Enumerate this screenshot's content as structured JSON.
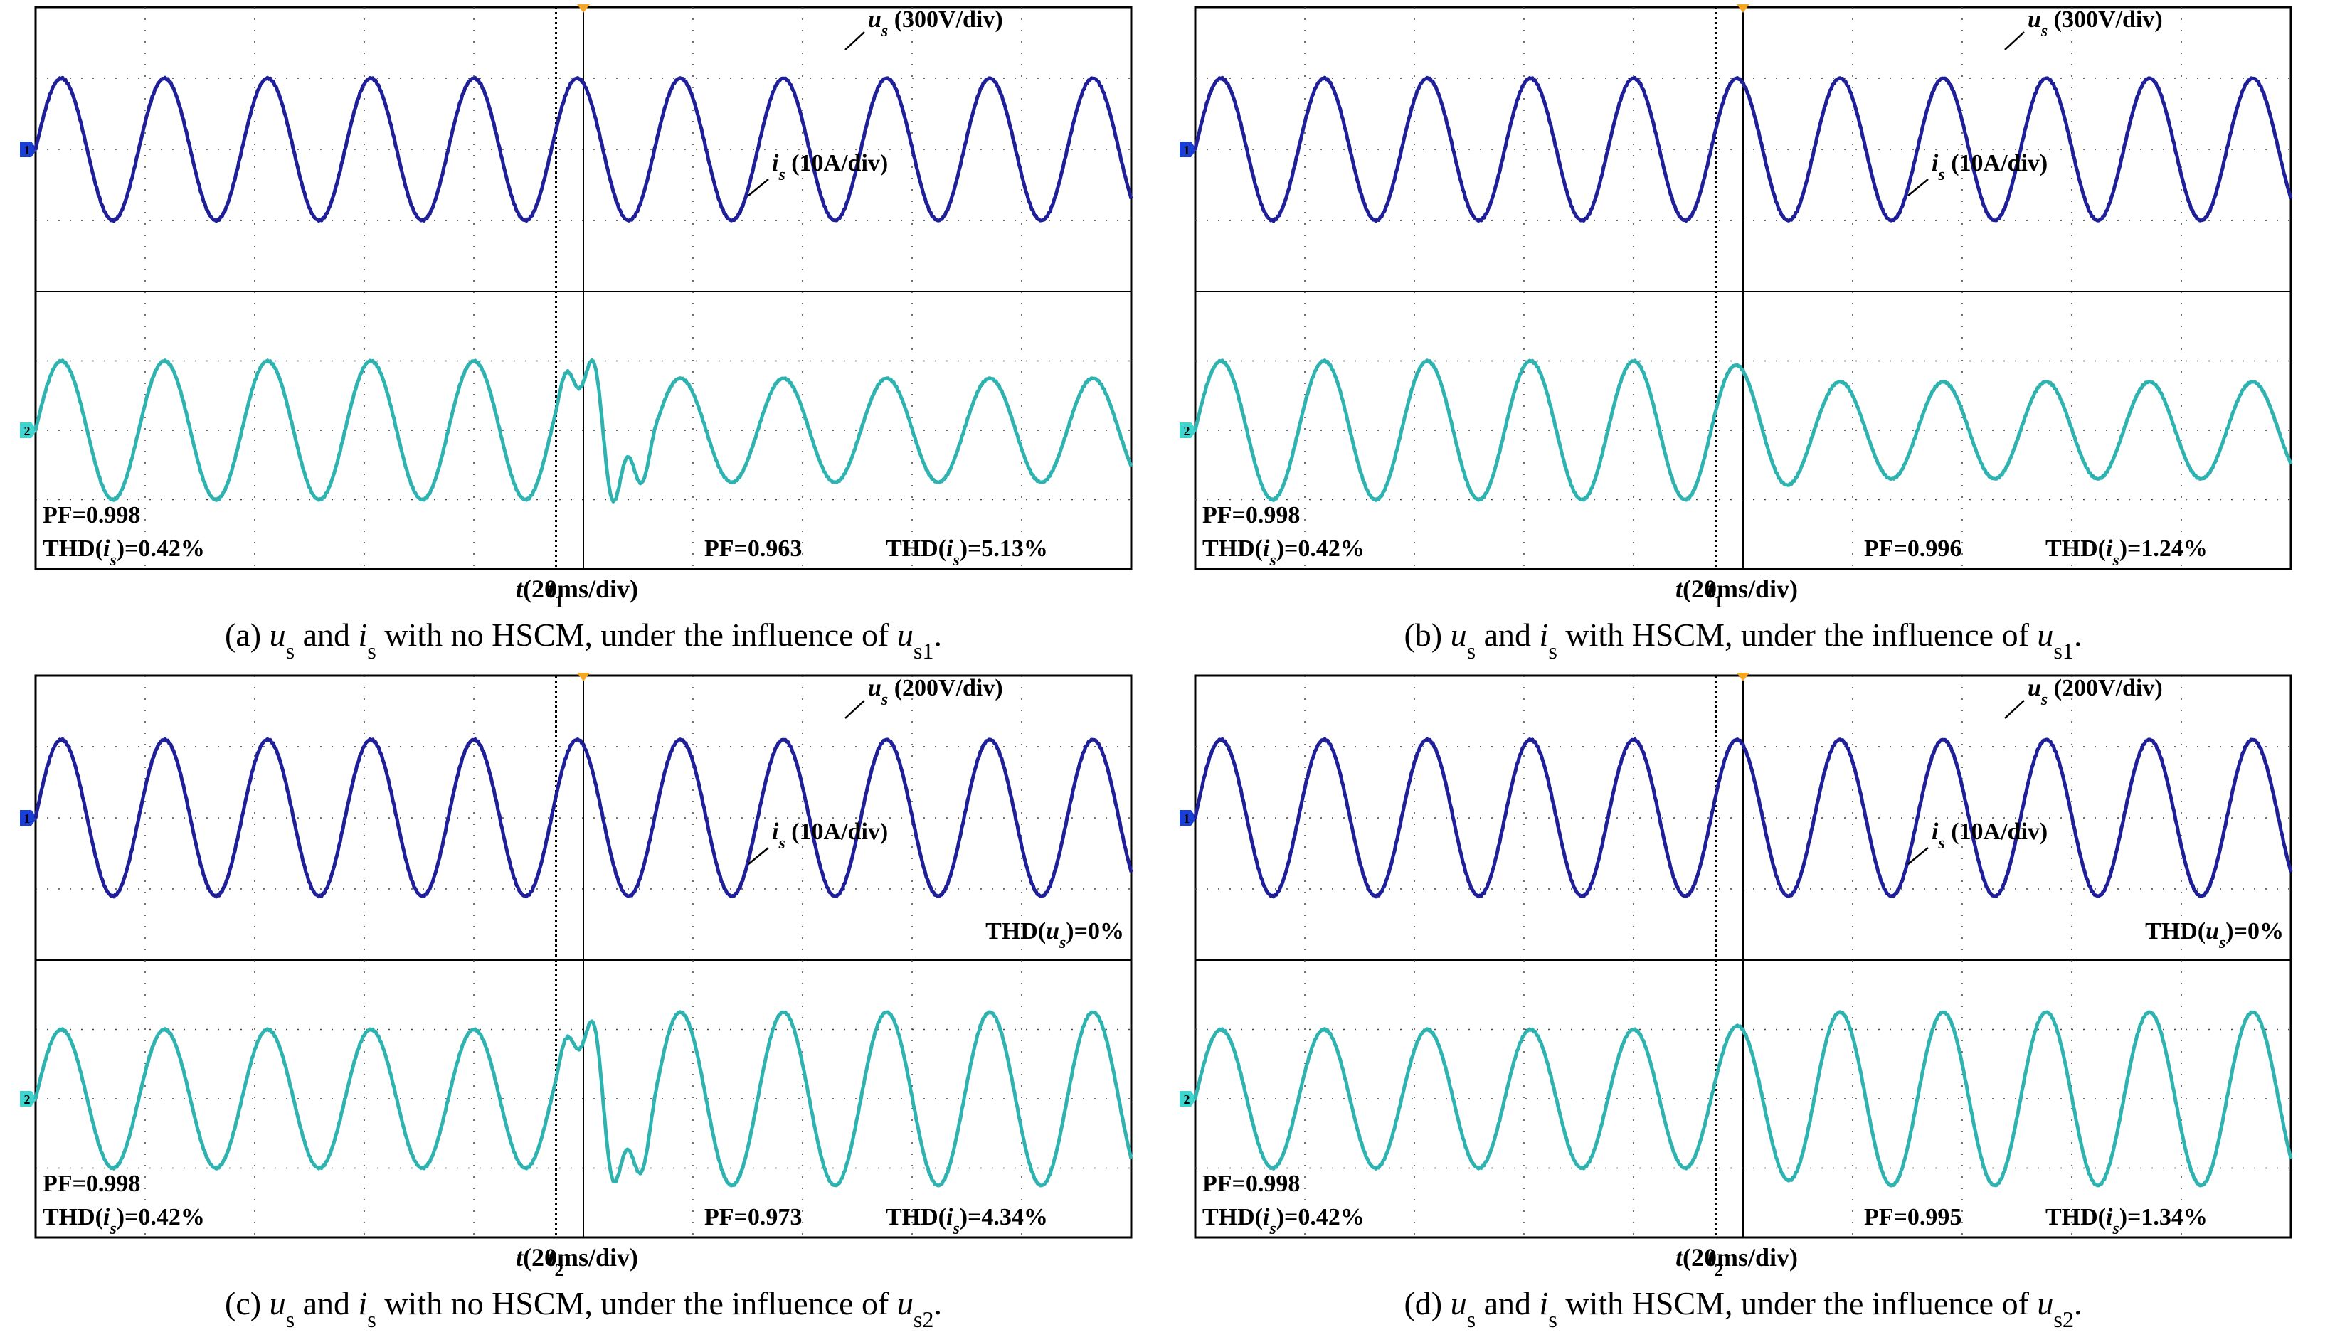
{
  "figure": {
    "colors": {
      "voltage_trace": "#1f1f9a",
      "current_trace": "#2fb3b0",
      "grid": "#444444",
      "marker_orange": "#f5a623",
      "ch1_marker": "#1a3fd6",
      "ch2_marker": "#3fd6cf"
    },
    "channel_markers": {
      "ch1": "1",
      "ch2": "2"
    }
  },
  "panels": [
    {
      "id": "a",
      "caption": {
        "prefix": "(a) ",
        "u": "u",
        "u_sub": "s",
        "and": " and ",
        "i": "i",
        "i_sub": "s",
        "rest": " with no HSCM, under the influence of ",
        "u2": "u",
        "u2_sub": "s1",
        "end": "."
      },
      "voltage_label": {
        "var": "u",
        "sub": "s",
        "scale": " (300V/div)"
      },
      "current_label": {
        "var": "i",
        "sub": "s",
        "scale": " (10A/div)"
      },
      "left_pf": "PF=0.998",
      "left_thd": {
        "pre": "THD(",
        "var": "i",
        "sub": "s",
        "post": ")=0.42%"
      },
      "right_pf": "PF=0.963",
      "right_thd": {
        "pre": "THD(",
        "var": "i",
        "sub": "s",
        "post": ")=5.13%"
      },
      "event_marker": {
        "var": "t",
        "sub": "1"
      },
      "time_label": {
        "var": "t",
        "rest": "(20ms/div)"
      },
      "thd_u": null
    },
    {
      "id": "b",
      "caption": {
        "prefix": "(b) ",
        "u": "u",
        "u_sub": "s",
        "and": " and ",
        "i": "i",
        "i_sub": "s",
        "rest": " with HSCM, under the influence of ",
        "u2": "u",
        "u2_sub": "s1",
        "end": "."
      },
      "voltage_label": {
        "var": "u",
        "sub": "s",
        "scale": " (300V/div)"
      },
      "current_label": {
        "var": "i",
        "sub": "s",
        "scale": " (10A/div)"
      },
      "left_pf": "PF=0.998",
      "left_thd": {
        "pre": "THD(",
        "var": "i",
        "sub": "s",
        "post": ")=0.42%"
      },
      "right_pf": "PF=0.996",
      "right_thd": {
        "pre": "THD(",
        "var": "i",
        "sub": "s",
        "post": ")=1.24%"
      },
      "event_marker": {
        "var": "t",
        "sub": "1"
      },
      "time_label": {
        "var": "t",
        "rest": "(20ms/div)"
      },
      "thd_u": null
    },
    {
      "id": "c",
      "caption": {
        "prefix": "(c) ",
        "u": "u",
        "u_sub": "s",
        "and": " and ",
        "i": "i",
        "i_sub": "s",
        "rest": " with no HSCM, under the influence of ",
        "u2": "u",
        "u2_sub": "s2",
        "end": "."
      },
      "voltage_label": {
        "var": "u",
        "sub": "s",
        "scale": " (200V/div)"
      },
      "current_label": {
        "var": "i",
        "sub": "s",
        "scale": " (10A/div)"
      },
      "left_pf": "PF=0.998",
      "left_thd": {
        "pre": "THD(",
        "var": "i",
        "sub": "s",
        "post": ")=0.42%"
      },
      "right_pf": "PF=0.973",
      "right_thd": {
        "pre": "THD(",
        "var": "i",
        "sub": "s",
        "post": ")=4.34%"
      },
      "event_marker": {
        "var": "t",
        "sub": "2"
      },
      "time_label": {
        "var": "t",
        "rest": "(20ms/div)"
      },
      "thd_u": {
        "pre": "THD(",
        "var": "u",
        "sub": "s",
        "post": ")=0%"
      }
    },
    {
      "id": "d",
      "caption": {
        "prefix": "(d) ",
        "u": "u",
        "u_sub": "s",
        "and": " and ",
        "i": "i",
        "i_sub": "s",
        "rest": " with HSCM, under the influence of ",
        "u2": "u",
        "u2_sub": "s2",
        "end": "."
      },
      "voltage_label": {
        "var": "u",
        "sub": "s",
        "scale": " (200V/div)"
      },
      "current_label": {
        "var": "i",
        "sub": "s",
        "scale": " (10A/div)"
      },
      "left_pf": "PF=0.998",
      "left_thd": {
        "pre": "THD(",
        "var": "i",
        "sub": "s",
        "post": ")=0.42%"
      },
      "right_pf": "PF=0.995",
      "right_thd": {
        "pre": "THD(",
        "var": "i",
        "sub": "s",
        "post": ")=1.34%"
      },
      "event_marker": {
        "var": "t",
        "sub": "2"
      },
      "time_label": {
        "var": "t",
        "rest": "(20ms/div)"
      },
      "thd_u": {
        "pre": "THD(",
        "var": "u",
        "sub": "s",
        "post": ")=0%"
      }
    }
  ],
  "chart_data": [
    {
      "type": "line",
      "panel": "a",
      "title": "",
      "x_unit": "ms",
      "x_per_div": 20,
      "event_time": {
        "var": "t",
        "sub": "1"
      },
      "series": [
        {
          "name": "us",
          "scale": "300V/div",
          "frequency_hz": 50,
          "amplitude_div": 1.0,
          "behavior": "steady sinusoid throughout"
        },
        {
          "name": "is",
          "scale": "10A/div",
          "frequency_hz": 50,
          "amplitude_div_before": 1.0,
          "amplitude_div_after": 0.75,
          "behavior": "distorted transient with spikes after event, then sinusoid",
          "PF_before": 0.998,
          "THD_before_pct": 0.42,
          "PF_after": 0.963,
          "THD_after_pct": 5.13
        }
      ]
    },
    {
      "type": "line",
      "panel": "b",
      "title": "",
      "x_unit": "ms",
      "x_per_div": 20,
      "event_time": {
        "var": "t",
        "sub": "1"
      },
      "series": [
        {
          "name": "us",
          "scale": "300V/div",
          "frequency_hz": 50,
          "amplitude_div": 1.0,
          "behavior": "steady sinusoid throughout"
        },
        {
          "name": "is",
          "scale": "10A/div",
          "frequency_hz": 50,
          "amplitude_div_before": 1.0,
          "amplitude_div_after": 0.7,
          "behavior": "smooth transition, reduced amplitude",
          "PF_before": 0.998,
          "THD_before_pct": 0.42,
          "PF_after": 0.996,
          "THD_after_pct": 1.24
        }
      ]
    },
    {
      "type": "line",
      "panel": "c",
      "title": "",
      "x_unit": "ms",
      "x_per_div": 20,
      "event_time": {
        "var": "t",
        "sub": "2"
      },
      "series": [
        {
          "name": "us",
          "scale": "200V/div",
          "frequency_hz": 50,
          "amplitude_div": 1.1,
          "behavior": "steady sinusoid throughout",
          "THD_pct": 0
        },
        {
          "name": "is",
          "scale": "10A/div",
          "frequency_hz": 50,
          "amplitude_div_before": 1.0,
          "amplitude_div_after": 1.25,
          "behavior": "large distorted transient after event, then larger sinusoid",
          "PF_before": 0.998,
          "THD_before_pct": 0.42,
          "PF_after": 0.973,
          "THD_after_pct": 4.34
        }
      ]
    },
    {
      "type": "line",
      "panel": "d",
      "title": "",
      "x_unit": "ms",
      "x_per_div": 20,
      "event_time": {
        "var": "t",
        "sub": "2"
      },
      "series": [
        {
          "name": "us",
          "scale": "200V/div",
          "frequency_hz": 50,
          "amplitude_div": 1.1,
          "behavior": "steady sinusoid throughout",
          "THD_pct": 0
        },
        {
          "name": "is",
          "scale": "10A/div",
          "frequency_hz": 50,
          "amplitude_div_before": 1.0,
          "amplitude_div_after": 1.25,
          "behavior": "smooth transition, increased amplitude",
          "PF_before": 0.998,
          "THD_before_pct": 0.42,
          "PF_after": 0.995,
          "THD_after_pct": 1.34
        }
      ]
    }
  ]
}
